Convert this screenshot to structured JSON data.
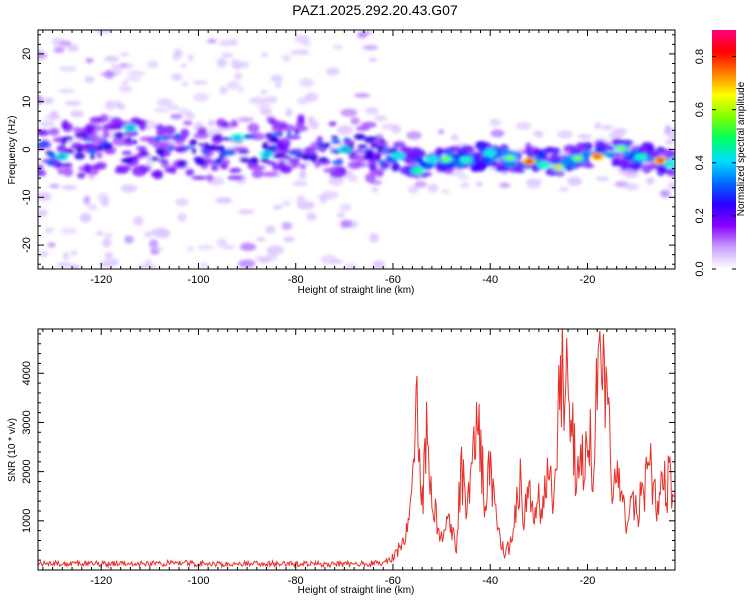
{
  "title": "PAZ1.2025.292.20.43.G07",
  "chart_data": [
    {
      "type": "heatmap",
      "name": "spectrogram",
      "xlabel": "Height of straight line (km)",
      "ylabel": "Frequency (Hz)",
      "xlim": [
        -133,
        -2
      ],
      "ylim": [
        -25,
        25
      ],
      "xticks": [
        -120,
        -100,
        -80,
        -60,
        -40,
        -20
      ],
      "yticks": [
        -20,
        -10,
        0,
        10,
        20
      ],
      "colorbar": {
        "label": "Normalized spectral amplitude",
        "range": [
          0,
          0.9
        ],
        "ticks": [
          "0.0",
          "0.2",
          "0.4",
          "0.6",
          "0.8"
        ],
        "colors": [
          "#ffffff",
          "#c9a0ff",
          "#8a00ff",
          "#2800ff",
          "#0070ff",
          "#00e0ff",
          "#00ff60",
          "#80ff00",
          "#ffff00",
          "#ff8000",
          "#ff0000",
          "#ff0080"
        ]
      },
      "band_center": [
        {
          "x": -132,
          "y": -1
        },
        {
          "x": -120,
          "y": 1
        },
        {
          "x": -110,
          "y": 0
        },
        {
          "x": -100,
          "y": 0
        },
        {
          "x": -90,
          "y": 0
        },
        {
          "x": -80,
          "y": 1
        },
        {
          "x": -70,
          "y": 0
        },
        {
          "x": -60,
          "y": -1
        },
        {
          "x": -55,
          "y": -3
        },
        {
          "x": -50,
          "y": -2
        },
        {
          "x": -45,
          "y": -2
        },
        {
          "x": -40,
          "y": -1
        },
        {
          "x": -35,
          "y": -2
        },
        {
          "x": -30,
          "y": -2
        },
        {
          "x": -26,
          "y": -3
        },
        {
          "x": -20,
          "y": -1
        },
        {
          "x": -15,
          "y": -1
        },
        {
          "x": -10,
          "y": -1
        },
        {
          "x": -5,
          "y": -2
        },
        {
          "x": -2,
          "y": -3
        }
      ]
    },
    {
      "type": "line",
      "name": "snr",
      "xlabel": "Height of straight line (km)",
      "ylabel": "SNR (10 * v/v)",
      "xlim": [
        -133,
        -2
      ],
      "ylim": [
        0,
        4900
      ],
      "xticks": [
        -120,
        -100,
        -80,
        -60,
        -40,
        -20
      ],
      "yticks": [
        1000,
        2000,
        3000,
        4000
      ],
      "color": "#e8302a",
      "series": [
        {
          "name": "SNR",
          "x": [
            -133,
            -125,
            -115,
            -105,
            -95,
            -85,
            -75,
            -65,
            -62,
            -60,
            -58,
            -57,
            -56,
            -55,
            -54,
            -53,
            -52,
            -51,
            -50,
            -49,
            -48,
            -47,
            -46,
            -45,
            -44,
            -43,
            -42,
            -41,
            -40,
            -39,
            -38,
            -37,
            -36,
            -35,
            -34,
            -33,
            -32,
            -31,
            -30,
            -29,
            -28,
            -27,
            -26,
            -25,
            -24,
            -23,
            -22,
            -21,
            -20,
            -19,
            -18,
            -17,
            -16,
            -15,
            -14,
            -13,
            -12,
            -11,
            -10,
            -9,
            -8,
            -7,
            -6,
            -5,
            -4,
            -3,
            -2
          ],
          "y": [
            120,
            130,
            120,
            140,
            120,
            130,
            120,
            130,
            150,
            250,
            550,
            900,
            1600,
            3850,
            1300,
            2800,
            1700,
            1100,
            600,
            1250,
            900,
            400,
            2200,
            1350,
            1600,
            3450,
            2400,
            1300,
            2050,
            1100,
            700,
            300,
            500,
            1000,
            1900,
            1100,
            1450,
            950,
            1550,
            1150,
            2450,
            1200,
            3500,
            4050,
            4850,
            2800,
            1700,
            2100,
            3200,
            2300,
            3400,
            4100,
            3000,
            2000,
            1800,
            1500,
            850,
            1400,
            1200,
            1400,
            1700,
            2000,
            1450,
            1600,
            1700,
            1800,
            1900
          ]
        }
      ]
    }
  ]
}
